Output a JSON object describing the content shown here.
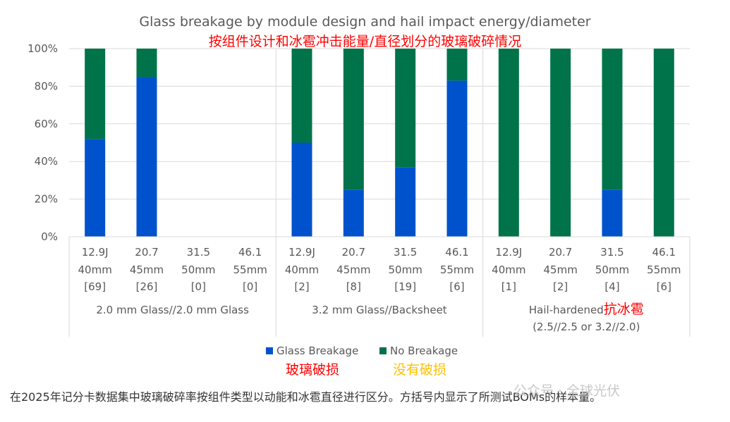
{
  "chart_data": {
    "type": "bar",
    "stacked": true,
    "title": "Glass breakage by module design and hail impact energy/diameter",
    "subtitle_cn": "按组件设计和冰雹冲击能量/直径划分的玻璃破碎情况",
    "ylim": [
      0,
      100
    ],
    "y_ticks": [
      "0%",
      "20%",
      "40%",
      "60%",
      "80%",
      "100%"
    ],
    "grid": true,
    "legend_position": "bottom",
    "groups": [
      {
        "label": "2.0 mm Glass//2.0 mm Glass",
        "label_cn": "",
        "label_line2": "",
        "categories": [
          {
            "energy": "12.9J",
            "diameter": "40mm",
            "samples": "[69]",
            "glass_breakage": 52,
            "no_breakage": 48
          },
          {
            "energy": "20.7",
            "diameter": "45mm",
            "samples": "[26]",
            "glass_breakage": 85,
            "no_breakage": 15
          },
          {
            "energy": "31.5",
            "diameter": "50mm",
            "samples": "[0]",
            "glass_breakage": 0,
            "no_breakage": 0
          },
          {
            "energy": "46.1",
            "diameter": "55mm",
            "samples": "[0]",
            "glass_breakage": 0,
            "no_breakage": 0
          }
        ]
      },
      {
        "label": "3.2 mm Glass//Backsheet",
        "label_cn": "",
        "label_line2": "",
        "categories": [
          {
            "energy": "12.9J",
            "diameter": "40mm",
            "samples": "[2]",
            "glass_breakage": 50,
            "no_breakage": 50
          },
          {
            "energy": "20.7",
            "diameter": "45mm",
            "samples": "[8]",
            "glass_breakage": 25,
            "no_breakage": 75
          },
          {
            "energy": "31.5",
            "diameter": "50mm",
            "samples": "[19]",
            "glass_breakage": 37,
            "no_breakage": 63
          },
          {
            "energy": "46.1",
            "diameter": "55mm",
            "samples": "[6]",
            "glass_breakage": 83,
            "no_breakage": 17
          }
        ]
      },
      {
        "label": "Hail-hardened",
        "label_cn": "抗冰雹",
        "label_line2": "(2.5//2.5 or 3.2//2.0)",
        "categories": [
          {
            "energy": "12.9J",
            "diameter": "40mm",
            "samples": "[1]",
            "glass_breakage": 0,
            "no_breakage": 100
          },
          {
            "energy": "20.7",
            "diameter": "45mm",
            "samples": "[2]",
            "glass_breakage": 0,
            "no_breakage": 100
          },
          {
            "energy": "31.5",
            "diameter": "50mm",
            "samples": "[4]",
            "glass_breakage": 25,
            "no_breakage": 75
          },
          {
            "energy": "46.1",
            "diameter": "55mm",
            "samples": "[6]",
            "glass_breakage": 0,
            "no_breakage": 100
          }
        ]
      }
    ],
    "series": [
      {
        "name": "Glass Breakage",
        "name_cn": "玻璃破损",
        "color": "#0052cc",
        "cn_color": "#ff0000",
        "key": "glass_breakage"
      },
      {
        "name": "No Breakage",
        "name_cn": "没有破损",
        "color": "#00734a",
        "cn_color": "#ffc000",
        "key": "no_breakage"
      }
    ]
  },
  "caption": "在2025年记分卡数据集中玻璃破碎率按组件类型以动能和冰雹直径进行区分。方括号内显示了所测试BOMs的样本量。",
  "watermark": "公众号 · 全球光伏"
}
